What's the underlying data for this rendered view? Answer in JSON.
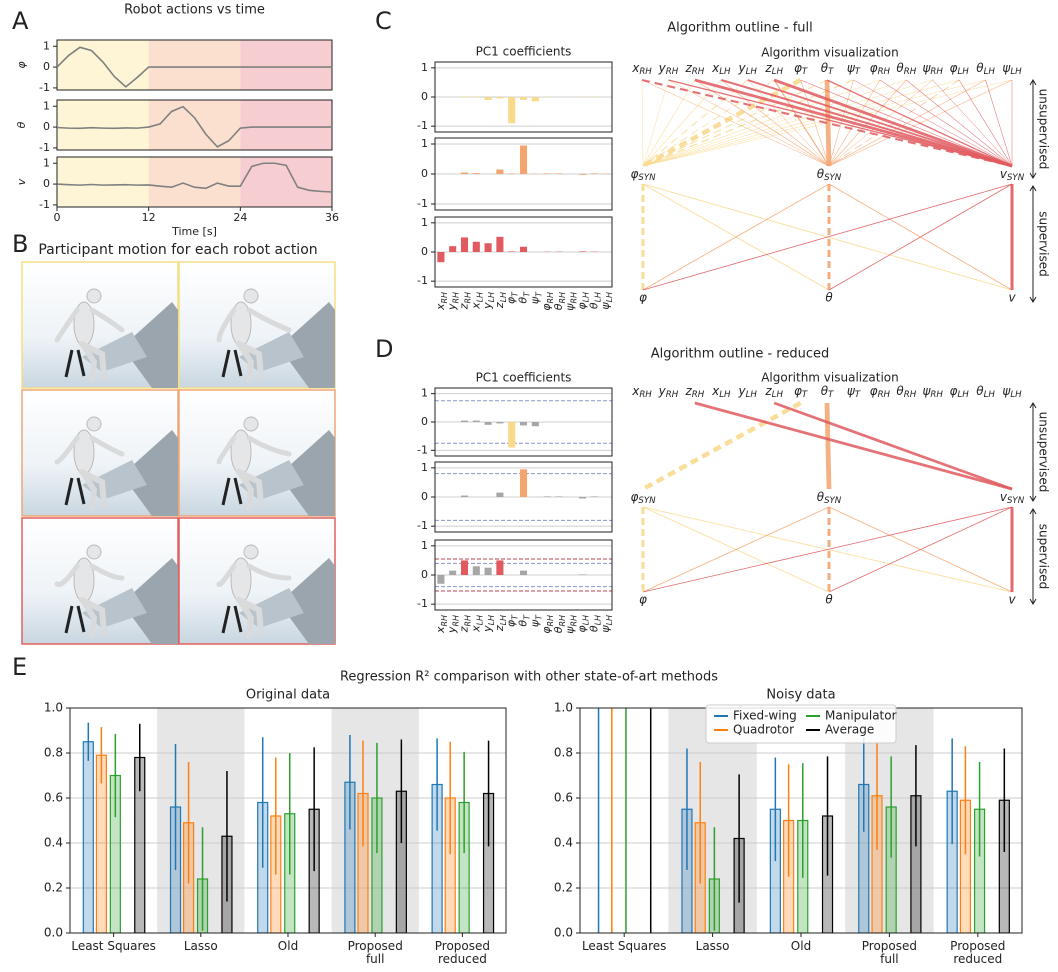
{
  "panel_letters": [
    "A",
    "B",
    "C",
    "D",
    "E"
  ],
  "panel_b": {
    "title": "Participant motion for each robot action"
  },
  "diagrams": [
    {
      "title": "Algorithm outline - full",
      "subtitle": "Algorithm visualization"
    },
    {
      "title": "Algorithm outline - reduced",
      "subtitle": "Algorithm visualization"
    }
  ],
  "diagram_nodes": {
    "synergies": [
      "φSYN",
      "θSYN",
      "vSYN"
    ],
    "outputs": [
      "φ",
      "θ",
      "v"
    ],
    "unsupervised": "unsupervised",
    "supervised": "supervised"
  },
  "panel_e": {
    "title": "Regression R² comparison with other state-of-art methods"
  },
  "chart_data": [
    {
      "type": "line",
      "title": "Robot actions vs time",
      "ylabel": "φ",
      "x": [
        0,
        1.5,
        3,
        4.5,
        6,
        7.5,
        9,
        10.5,
        12,
        13.5,
        15,
        16.5,
        18,
        19.5,
        21,
        22.5,
        24,
        25.5,
        27,
        28.5,
        30,
        31.5,
        33,
        34.5,
        36
      ],
      "values": [
        0,
        0.55,
        0.95,
        0.8,
        0.25,
        -0.45,
        -0.95,
        -0.5,
        0,
        0,
        0,
        0,
        0,
        0,
        0,
        0,
        0,
        0,
        0,
        0,
        0,
        0,
        0,
        0,
        0
      ],
      "color": "#808080",
      "xlim": [
        0,
        36
      ],
      "ylim": [
        -1.1,
        1.3
      ],
      "yticks": [
        -1,
        0,
        1
      ],
      "spans": [
        {
          "from": 0,
          "to": 12,
          "color": "#fdf5d6"
        },
        {
          "from": 12,
          "to": 24,
          "color": "#fbe0cf"
        },
        {
          "from": 24,
          "to": 36,
          "color": "#f6cdd0"
        }
      ]
    },
    {
      "type": "line",
      "ylabel": "θ",
      "x": [
        0,
        1.5,
        3,
        4.5,
        6,
        7.5,
        9,
        10.5,
        12,
        13.5,
        15,
        16.5,
        18,
        19.5,
        21,
        22.5,
        24,
        25.5,
        27,
        28.5,
        30,
        31.5,
        33,
        34.5,
        36
      ],
      "values": [
        -0.02,
        -0.05,
        -0.06,
        -0.03,
        -0.05,
        -0.06,
        -0.04,
        -0.05,
        0,
        0.15,
        0.75,
        0.98,
        0.45,
        -0.35,
        -0.95,
        -0.65,
        -0.05,
        0,
        0,
        0,
        0,
        0,
        0,
        0,
        0
      ],
      "color": "#808080",
      "xlim": [
        0,
        36
      ],
      "ylim": [
        -1.1,
        1.3
      ],
      "yticks": [
        -1,
        0,
        1
      ],
      "spans": [
        {
          "from": 0,
          "to": 12,
          "color": "#fdf5d6"
        },
        {
          "from": 12,
          "to": 24,
          "color": "#fbe0cf"
        },
        {
          "from": 24,
          "to": 36,
          "color": "#f6cdd0"
        }
      ]
    },
    {
      "type": "line",
      "ylabel": "v",
      "xlabel": "Time [s]",
      "x": [
        0,
        1.5,
        3,
        4.5,
        6,
        7.5,
        9,
        10.5,
        12,
        13.5,
        15,
        16.5,
        18,
        19.5,
        21,
        22.5,
        24,
        25.5,
        27,
        28.5,
        30,
        31.5,
        33,
        34.5,
        36
      ],
      "values": [
        0,
        -0.03,
        -0.05,
        -0.02,
        -0.05,
        -0.04,
        -0.03,
        -0.05,
        -0.04,
        -0.1,
        -0.15,
        0.05,
        -0.15,
        -0.2,
        0.05,
        -0.1,
        -0.1,
        0.85,
        1.0,
        1.0,
        0.9,
        -0.15,
        -0.3,
        -0.35,
        -0.38
      ],
      "color": "#808080",
      "xlim": [
        0,
        36
      ],
      "ylim": [
        -1.1,
        1.3
      ],
      "yticks": [
        -1,
        0,
        1
      ],
      "xticks": [
        0,
        12,
        24,
        36
      ],
      "spans": [
        {
          "from": 0,
          "to": 12,
          "color": "#fdf5d6"
        },
        {
          "from": 12,
          "to": 24,
          "color": "#fbe0cf"
        },
        {
          "from": 24,
          "to": 36,
          "color": "#f6cdd0"
        }
      ]
    },
    {
      "type": "bar",
      "title": "PC1 coefficients",
      "values": [
        0,
        0,
        0.02,
        0.02,
        -0.1,
        -0.05,
        -0.9,
        -0.1,
        -0.15,
        0.01,
        0,
        0,
        0.01,
        0.01,
        0
      ],
      "color": "#f9d98a",
      "ylim": [
        -1.2,
        1.2
      ],
      "yticks": [
        -1,
        0,
        1
      ],
      "grid": true
    },
    {
      "type": "bar",
      "values": [
        0,
        0,
        0.05,
        0.03,
        0,
        0.15,
        0.02,
        0.95,
        0.01,
        0.02,
        0.02,
        0,
        -0.03,
        0.02,
        0.01
      ],
      "color": "#f4a46e",
      "ylim": [
        -1.2,
        1.2
      ],
      "yticks": [
        -1,
        0,
        1
      ],
      "grid": true
    },
    {
      "type": "bar",
      "categories": [
        "xRH",
        "yRH",
        "zRH",
        "xLH",
        "yLH",
        "zLH",
        "φT",
        "θT",
        "ψT",
        "φRH",
        "θRH",
        "ψRH",
        "φLH",
        "θLH",
        "ψLH"
      ],
      "values": [
        -0.35,
        0.2,
        0.5,
        0.35,
        0.3,
        0.52,
        0.02,
        0.18,
        0,
        0.01,
        0.01,
        0,
        0.02,
        0.01,
        0
      ],
      "color": "#e05a5f",
      "ylim": [
        -1.2,
        1.2
      ],
      "yticks": [
        -1,
        0,
        1
      ],
      "grid": true
    },
    {
      "type": "bar",
      "title": "PC1 coefficients",
      "values": [
        0,
        0,
        0.05,
        0.05,
        -0.1,
        -0.05,
        -0.9,
        -0.12,
        -0.15,
        0,
        0,
        0,
        0,
        0,
        0
      ],
      "color": "#f9d98a",
      "other_color": "#a6a6a6",
      "selected": [
        false,
        false,
        false,
        false,
        false,
        false,
        true,
        false,
        false,
        false,
        false,
        false,
        false,
        false,
        false
      ],
      "thresholds": [
        {
          "value": 0.75,
          "color": "#8a94cc"
        },
        {
          "value": -0.75,
          "color": "#8a94cc"
        }
      ],
      "ylim": [
        -1.2,
        1.2
      ],
      "yticks": [
        -1,
        0,
        1
      ],
      "grid": true
    },
    {
      "type": "bar",
      "values": [
        0,
        0,
        0.05,
        0,
        0,
        0.15,
        0,
        0.95,
        0,
        0.02,
        0.02,
        0,
        -0.05,
        0.02,
        0
      ],
      "color": "#f4a46e",
      "other_color": "#a6a6a6",
      "selected": [
        false,
        false,
        false,
        false,
        false,
        false,
        false,
        true,
        false,
        false,
        false,
        false,
        false,
        false,
        false
      ],
      "thresholds": [
        {
          "value": 0.8,
          "color": "#8a94cc"
        },
        {
          "value": -0.8,
          "color": "#8a94cc"
        }
      ],
      "ylim": [
        -1.2,
        1.2
      ],
      "yticks": [
        -1,
        0,
        1
      ],
      "grid": true
    },
    {
      "type": "bar",
      "categories": [
        "xRH",
        "yRH",
        "zRH",
        "xLH",
        "yLH",
        "zLH",
        "φT",
        "θT",
        "ψT",
        "φRH",
        "θRH",
        "ψRH",
        "φLH",
        "θLH",
        "ψLH"
      ],
      "values": [
        -0.3,
        0.15,
        0.5,
        0.3,
        0.25,
        0.5,
        0,
        0.15,
        0,
        0,
        0,
        0,
        0.02,
        0,
        0
      ],
      "color": "#e05a5f",
      "other_color": "#a6a6a6",
      "selected": [
        false,
        false,
        true,
        false,
        false,
        true,
        false,
        false,
        false,
        false,
        false,
        false,
        false,
        false,
        false
      ],
      "thresholds": [
        {
          "value": 0.55,
          "color": "#c0404f"
        },
        {
          "value": -0.55,
          "color": "#c0404f"
        },
        {
          "value": 0.4,
          "color": "#8a94cc"
        },
        {
          "value": -0.4,
          "color": "#8a94cc"
        }
      ],
      "ylim": [
        -1.2,
        1.2
      ],
      "yticks": [
        -1,
        0,
        1
      ],
      "grid": true
    },
    {
      "type": "grouped_bar",
      "title": "Original data",
      "categories": [
        "Least Squares",
        "Lasso",
        "Old",
        "Proposed\nfull",
        "Proposed\nreduced"
      ],
      "series": [
        {
          "name": "Fixed-wing",
          "color": "#1f77b4",
          "values": [
            0.85,
            0.56,
            0.58,
            0.67,
            0.66
          ],
          "errors": [
            0.085,
            0.28,
            0.29,
            0.21,
            0.205
          ]
        },
        {
          "name": "Quadrotor",
          "color": "#ff7f0e",
          "values": [
            0.79,
            0.49,
            0.52,
            0.62,
            0.6
          ],
          "errors": [
            0.125,
            0.27,
            0.26,
            0.235,
            0.25
          ]
        },
        {
          "name": "Manipulator",
          "color": "#2ca02c",
          "values": [
            0.7,
            0.24,
            0.53,
            0.6,
            0.58
          ],
          "errors": [
            0.185,
            0.23,
            0.27,
            0.245,
            0.225
          ]
        },
        {
          "name": "Average",
          "color": "#000000",
          "values": [
            0.78,
            0.43,
            0.55,
            0.63,
            0.62
          ],
          "errors": [
            0.15,
            0.29,
            0.275,
            0.23,
            0.235
          ]
        }
      ],
      "ylim": [
        0,
        1
      ],
      "yticks": [
        {
          "value": 0,
          "label": "0.0"
        },
        {
          "value": 0.2,
          "label": "0.2"
        },
        {
          "value": 0.4,
          "label": "0.4"
        },
        {
          "value": 0.6,
          "label": "0.6"
        },
        {
          "value": 0.8,
          "label": "0.8"
        },
        {
          "value": 1,
          "label": "1.0"
        }
      ],
      "grid": true,
      "shaded": [
        false,
        true,
        false,
        true,
        false
      ]
    },
    {
      "type": "grouped_bar",
      "title": "Noisy data",
      "categories": [
        "Least Squares",
        "Lasso",
        "Old",
        "Proposed\nfull",
        "Proposed\nreduced"
      ],
      "series": [
        {
          "name": "Fixed-wing",
          "color": "#1f77b4",
          "values": [
            0,
            0.55,
            0.55,
            0.66,
            0.63
          ],
          "errors": [
            1.2,
            0.27,
            0.23,
            0.21,
            0.235
          ]
        },
        {
          "name": "Quadrotor",
          "color": "#ff7f0e",
          "values": [
            0,
            0.49,
            0.5,
            0.61,
            0.59
          ],
          "errors": [
            1.2,
            0.27,
            0.25,
            0.24,
            0.24
          ]
        },
        {
          "name": "Manipulator",
          "color": "#2ca02c",
          "values": [
            0,
            0.24,
            0.5,
            0.56,
            0.55
          ],
          "errors": [
            1.2,
            0.23,
            0.255,
            0.225,
            0.21
          ]
        },
        {
          "name": "Average",
          "color": "#000000",
          "values": [
            0,
            0.42,
            0.52,
            0.61,
            0.59
          ],
          "errors": [
            1.2,
            0.285,
            0.265,
            0.225,
            0.23
          ]
        }
      ],
      "ylim": [
        0,
        1
      ],
      "yticks": [
        {
          "value": 0,
          "label": "0.0"
        },
        {
          "value": 0.2,
          "label": "0.2"
        },
        {
          "value": 0.4,
          "label": "0.4"
        },
        {
          "value": 0.6,
          "label": "0.6"
        },
        {
          "value": 0.8,
          "label": "0.8"
        },
        {
          "value": 1,
          "label": "1.0"
        }
      ],
      "grid": true,
      "shaded": [
        false,
        true,
        false,
        true,
        false
      ],
      "legend": "upper center"
    }
  ]
}
